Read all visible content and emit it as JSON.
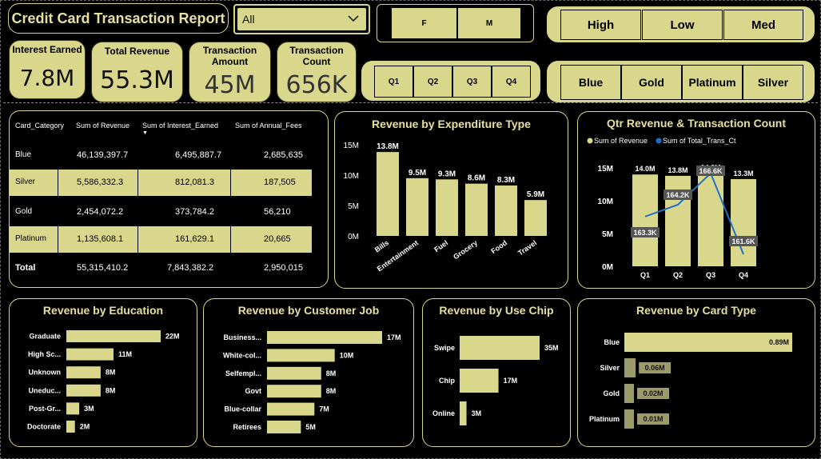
{
  "header": {
    "title": "Credit Card Transaction Report"
  },
  "filters": {
    "dropdown": {
      "value": "All"
    },
    "gender": [
      "F",
      "M"
    ],
    "income": [
      "High",
      "Low",
      "Med"
    ],
    "quarters": [
      "Q1",
      "Q2",
      "Q3",
      "Q4"
    ],
    "card_categories": [
      "Blue",
      "Gold",
      "Platinum",
      "Silver"
    ]
  },
  "kpis": [
    {
      "label": "Interest Earned",
      "value": "7.8M"
    },
    {
      "label": "Total Revenue",
      "value": "55.3M"
    },
    {
      "label": "Transaction Amount",
      "value": "45M"
    },
    {
      "label": "Transaction Count",
      "value": "656K"
    }
  ],
  "table": {
    "headers": [
      "Card_Category",
      "Sum of Revenue",
      "Sum of Interest_Earned",
      "Sum of Annual_Fees"
    ],
    "rows": [
      [
        "Blue",
        "46,139,397.7",
        "6,495,887.7",
        "2,685,635"
      ],
      [
        "Silver",
        "5,586,332.3",
        "812,081.3",
        "187,505"
      ],
      [
        "Gold",
        "2,454,072.2",
        "373,784.2",
        "56,210"
      ],
      [
        "Platinum",
        "1,135,608.1",
        "161,629.1",
        "20,665"
      ]
    ],
    "total": [
      "Total",
      "55,315,410.2",
      "7,843,382.2",
      "2,950,015"
    ]
  },
  "colors": {
    "accent": "#d9d78b",
    "line": "#1f6fc9",
    "background": "#000000",
    "dim_bar": "#9b9a6a"
  },
  "chart_data": [
    {
      "id": "expenditure",
      "type": "bar",
      "title": "Revenue by Expenditure Type",
      "categories": [
        "Bills",
        "Entertainment",
        "Fuel",
        "Grocery",
        "Food",
        "Travel"
      ],
      "values": [
        13.8,
        9.5,
        9.3,
        8.6,
        8.3,
        5.9
      ],
      "data_labels": [
        "13.8M",
        "9.5M",
        "9.3M",
        "8.6M",
        "8.3M",
        "5.9M"
      ],
      "yticks": [
        "0M",
        "5M",
        "10M",
        "15M"
      ],
      "ylim": [
        0,
        15
      ]
    },
    {
      "id": "quarter",
      "type": "bar",
      "title": "Qtr Revenue & Transaction Count",
      "legend": [
        "Sum of Revenue",
        "Sum of Total_Trans_Ct"
      ],
      "categories": [
        "Q1",
        "Q2",
        "Q3",
        "Q4"
      ],
      "series": [
        {
          "name": "Sum of Revenue",
          "values": [
            14.0,
            13.8,
            14.2,
            13.3
          ],
          "labels": [
            "14.0M",
            "13.8M",
            "14.2M",
            "13.3M"
          ]
        },
        {
          "name": "Sum of Total_Trans_Ct",
          "values": [
            163.3,
            164.2,
            166.6,
            161.6
          ],
          "labels": [
            "163.3K",
            "164.2K",
            "166.6K",
            "161.6K"
          ]
        }
      ],
      "yticks": [
        "0M",
        "5M",
        "10M",
        "15M"
      ],
      "ylim": [
        0,
        15
      ]
    },
    {
      "id": "education",
      "type": "bar",
      "title": "Revenue by Education",
      "categories": [
        "Graduate",
        "High Sc...",
        "Unknown",
        "Uneduc...",
        "Post-Gr...",
        "Doctorate"
      ],
      "values": [
        22,
        11,
        8,
        8,
        3,
        2
      ],
      "data_labels": [
        "22M",
        "11M",
        "8M",
        "8M",
        "3M",
        "2M"
      ]
    },
    {
      "id": "job",
      "type": "bar",
      "title": "Revenue by Customer Job",
      "categories": [
        "Business...",
        "White-col...",
        "Selfempl...",
        "Govt",
        "Blue-collar",
        "Retirees"
      ],
      "values": [
        17,
        10,
        8,
        8,
        7,
        5
      ],
      "data_labels": [
        "17M",
        "10M",
        "8M",
        "8M",
        "7M",
        "5M"
      ]
    },
    {
      "id": "chip",
      "type": "bar",
      "title": "Revenue by Use Chip",
      "categories": [
        "Swipe",
        "Chip",
        "Online"
      ],
      "values": [
        35,
        17,
        3
      ],
      "data_labels": [
        "35M",
        "17M",
        "3M"
      ]
    },
    {
      "id": "cardtype",
      "type": "bar",
      "title": "Revenue by Card Type",
      "categories": [
        "Blue",
        "Silver",
        "Gold",
        "Platinum"
      ],
      "values": [
        0.89,
        0.06,
        0.02,
        0.01
      ],
      "data_labels": [
        "0.89M",
        "0.06M",
        "0.02M",
        "0.01M"
      ]
    }
  ]
}
